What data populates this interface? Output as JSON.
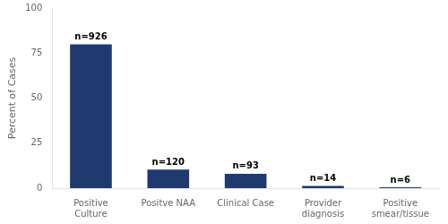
{
  "chart_data": {
    "type": "bar",
    "categories": [
      "Positive\nCulture",
      "Positve NAA",
      "Clinical Case",
      "Provider\ndiagnosis",
      "Positive\nsmear/tissue"
    ],
    "values": [
      79.9,
      10.35,
      8.02,
      1.21,
      0.52
    ],
    "annotations": [
      "n=926",
      "n=120",
      "n=93",
      "n=14",
      "n=6"
    ],
    "color": "#1f3a6e",
    "ylabel": "Percent of Cases",
    "ylim": [
      0,
      100
    ],
    "yticks": [
      0,
      25,
      50,
      75,
      100
    ],
    "grid": false
  }
}
